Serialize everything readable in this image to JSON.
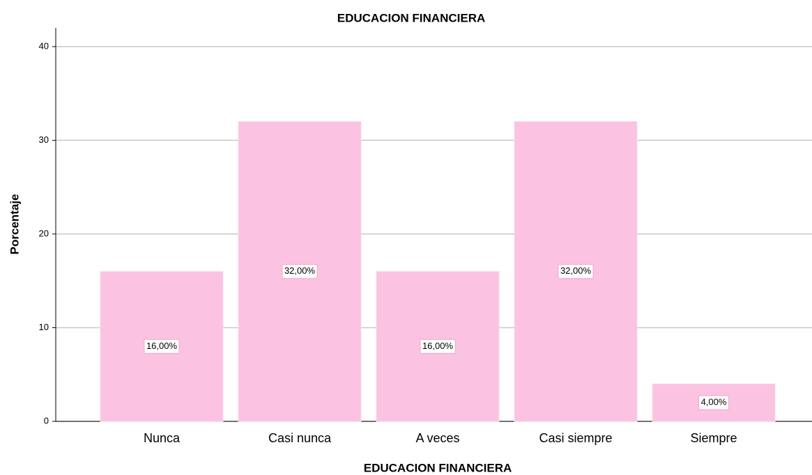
{
  "chart_data": {
    "type": "bar",
    "title": "EDUCACION FINANCIERA",
    "x_label": "EDUCACION FINANCIERA",
    "y_label": "Porcentaje",
    "categories": [
      "Nunca",
      "Casi nunca",
      "A veces",
      "Casi siempre",
      "Siempre"
    ],
    "values": [
      16,
      32,
      16,
      32,
      4
    ],
    "value_labels": [
      "16,00%",
      "32,00%",
      "16,00%",
      "32,00%",
      "4,00%"
    ],
    "color": "#fcc2e2",
    "ylim": [
      0,
      42
    ],
    "yticks": [
      0,
      10,
      20,
      30,
      40
    ],
    "grid": true
  }
}
